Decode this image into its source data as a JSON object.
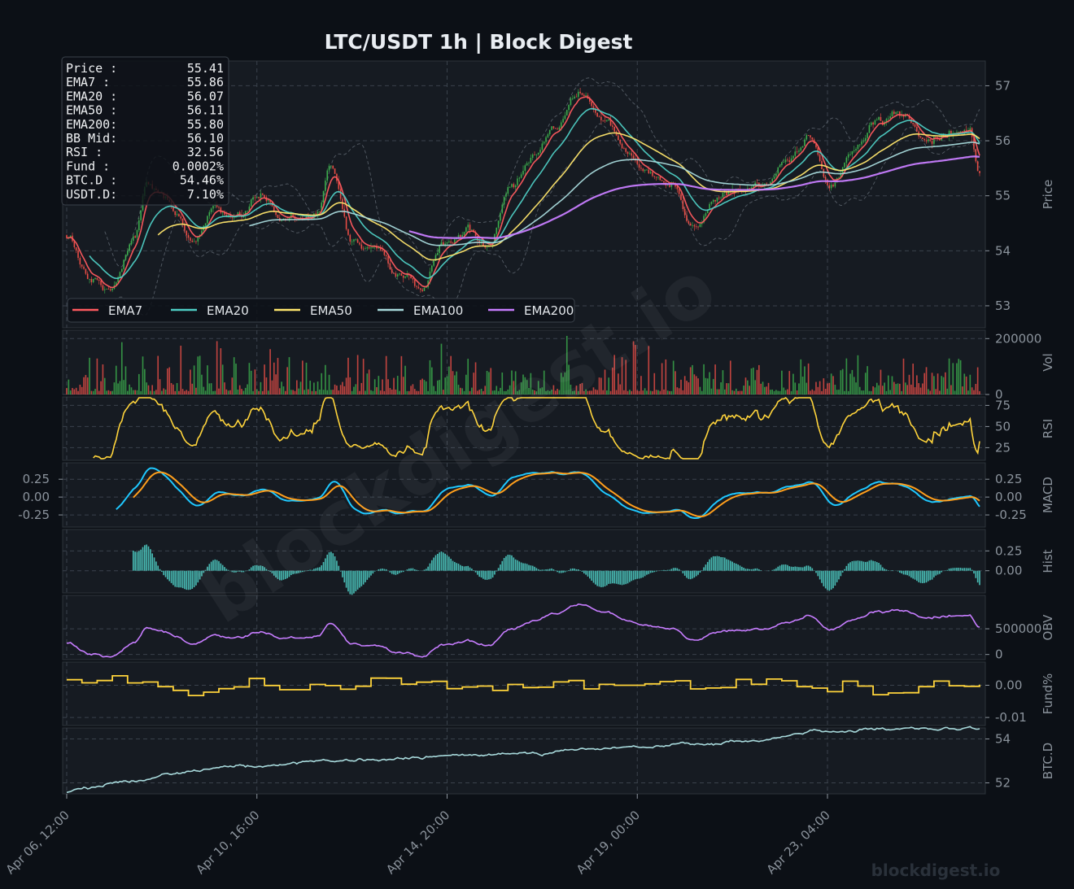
{
  "header": {
    "title": "LTC/USDT  1h  |  Block Digest"
  },
  "watermark": {
    "center": "blockdigest.io",
    "corner": "blockdigest.io"
  },
  "info_box": {
    "rows": [
      {
        "label": "Price :",
        "value": "55.41"
      },
      {
        "label": "EMA7  :",
        "value": "55.86"
      },
      {
        "label": "EMA20 :",
        "value": "56.07"
      },
      {
        "label": "EMA50 :",
        "value": "56.11"
      },
      {
        "label": "EMA200:",
        "value": "55.80"
      },
      {
        "label": "BB Mid:",
        "value": "56.10"
      },
      {
        "label": "RSI   :",
        "value": "32.56"
      },
      {
        "label": "Fund  :",
        "value": "0.0002%"
      },
      {
        "label": "BTC.D :",
        "value": "54.46%"
      },
      {
        "label": "USDT.D:",
        "value": "7.10%"
      }
    ]
  },
  "legend": [
    {
      "name": "EMA7",
      "color": "#ff5a5f"
    },
    {
      "name": "EMA20",
      "color": "#4ecdc4"
    },
    {
      "name": "EMA50",
      "color": "#ffe66d"
    },
    {
      "name": "EMA100",
      "color": "#a8dadc"
    },
    {
      "name": "EMA200",
      "color": "#c77dff"
    }
  ],
  "colors": {
    "background": "#0c1016",
    "panel": "#161b22",
    "grid": "#3a424c",
    "up": "#3fb950",
    "down": "#f85149",
    "rsi": "#ffd43b",
    "macd": "#1fc8ff",
    "signal": "#ff9f1c",
    "hist": "#4ecdc4",
    "obv": "#c77dff",
    "funding": "#ffd43b",
    "btcd": "#a8dadc",
    "bb": "#8b949e"
  },
  "chart_data": [
    {
      "type": "candlestick",
      "panel": "price",
      "ylabel": "Price",
      "ylim": [
        52.6,
        57.45
      ],
      "yticks": [
        "53",
        "54",
        "55",
        "56",
        "57"
      ],
      "xticks": [
        "Apr 06, 12:00",
        "Apr 10, 16:00",
        "Apr 14, 20:00",
        "Apr 19, 00:00",
        "Apr 23, 04:00"
      ],
      "x_range": [
        "Apr 06, 12:00",
        "Apr 26, 12:00"
      ],
      "anchors": [
        [
          "Apr 06, 12:00",
          54.3
        ],
        [
          "Apr 07, 00:00",
          53.5
        ],
        [
          "Apr 07, 12:00",
          53.35
        ],
        [
          "Apr 08, 00:00",
          54.3
        ],
        [
          "Apr 08, 06:00",
          55.2
        ],
        [
          "Apr 08, 18:00",
          54.9
        ],
        [
          "Apr 09, 06:00",
          54.1
        ],
        [
          "Apr 09, 18:00",
          54.7
        ],
        [
          "Apr 10, 06:00",
          54.6
        ],
        [
          "Apr 10, 18:00",
          55.0
        ],
        [
          "Apr 11, 06:00",
          54.6
        ],
        [
          "Apr 12, 00:00",
          54.7
        ],
        [
          "Apr 12, 06:00",
          55.5
        ],
        [
          "Apr 12, 18:00",
          54.2
        ],
        [
          "Apr 13, 06:00",
          54.0
        ],
        [
          "Apr 13, 18:00",
          53.6
        ],
        [
          "Apr 14, 06:00",
          53.3
        ],
        [
          "Apr 14, 18:00",
          54.2
        ],
        [
          "Apr 15, 06:00",
          54.4
        ],
        [
          "Apr 15, 18:00",
          54.1
        ],
        [
          "Apr 16, 06:00",
          55.2
        ],
        [
          "Apr 16, 18:00",
          55.8
        ],
        [
          "Apr 17, 06:00",
          56.3
        ],
        [
          "Apr 17, 18:00",
          56.9
        ],
        [
          "Apr 18, 06:00",
          56.4
        ],
        [
          "Apr 18, 18:00",
          55.9
        ],
        [
          "Apr 19, 06:00",
          55.4
        ],
        [
          "Apr 19, 18:00",
          55.2
        ],
        [
          "Apr 20, 06:00",
          54.4
        ],
        [
          "Apr 20, 18:00",
          55.0
        ],
        [
          "Apr 21, 06:00",
          55.1
        ],
        [
          "Apr 21, 18:00",
          55.2
        ],
        [
          "Apr 22, 06:00",
          55.6
        ],
        [
          "Apr 22, 18:00",
          56.1
        ],
        [
          "Apr 23, 06:00",
          55.2
        ],
        [
          "Apr 23, 18:00",
          55.9
        ],
        [
          "Apr 24, 06:00",
          56.3
        ],
        [
          "Apr 24, 18:00",
          56.5
        ],
        [
          "Apr 25, 06:00",
          56.0
        ],
        [
          "Apr 25, 18:00",
          56.1
        ],
        [
          "Apr 26, 06:00",
          56.3
        ],
        [
          "Apr 26, 12:00",
          55.41
        ]
      ],
      "series": [
        "EMA7",
        "EMA20",
        "EMA50",
        "EMA100",
        "EMA200"
      ],
      "ema_start": {
        "EMA7": "Apr 06, 12:00",
        "EMA20": "Apr 07, 00:00",
        "EMA50": "Apr 08, 12:00",
        "EMA100": "Apr 10, 12:00",
        "EMA200": "Apr 14, 00:00"
      }
    },
    {
      "type": "bar",
      "panel": "volume",
      "ylabel": "Vol",
      "ylim": [
        0,
        230000
      ],
      "yticks": [
        "0",
        "200000"
      ]
    },
    {
      "type": "line",
      "panel": "rsi",
      "ylabel": "RSI",
      "ylim": [
        10,
        85
      ],
      "yticks": [
        "25",
        "50",
        "75"
      ],
      "last": 32.56
    },
    {
      "type": "line",
      "panel": "macd",
      "ylabel": "MACD",
      "ylim": [
        -0.42,
        0.48
      ],
      "yticks": [
        "-0.25",
        "0.00",
        "0.25"
      ],
      "series": [
        "MACD",
        "Signal"
      ]
    },
    {
      "type": "bar",
      "panel": "hist",
      "ylabel": "Hist",
      "ylim": [
        -0.28,
        0.52
      ],
      "yticks": [
        "0.00",
        "0.25"
      ]
    },
    {
      "type": "line",
      "panel": "obv",
      "ylabel": "OBV",
      "ylim": [
        -100000,
        1150000
      ],
      "yticks": [
        "0",
        "500000"
      ]
    },
    {
      "type": "step",
      "panel": "funding",
      "ylabel": "Fund%",
      "ylim": [
        -0.0125,
        0.0072
      ],
      "yticks": [
        "-0.01",
        "0.00"
      ]
    },
    {
      "type": "line",
      "panel": "btcd",
      "ylabel": "BTC.D",
      "ylim": [
        51.5,
        54.5
      ],
      "yticks": [
        "52",
        "54"
      ],
      "range": [
        51.6,
        54.46
      ]
    }
  ]
}
